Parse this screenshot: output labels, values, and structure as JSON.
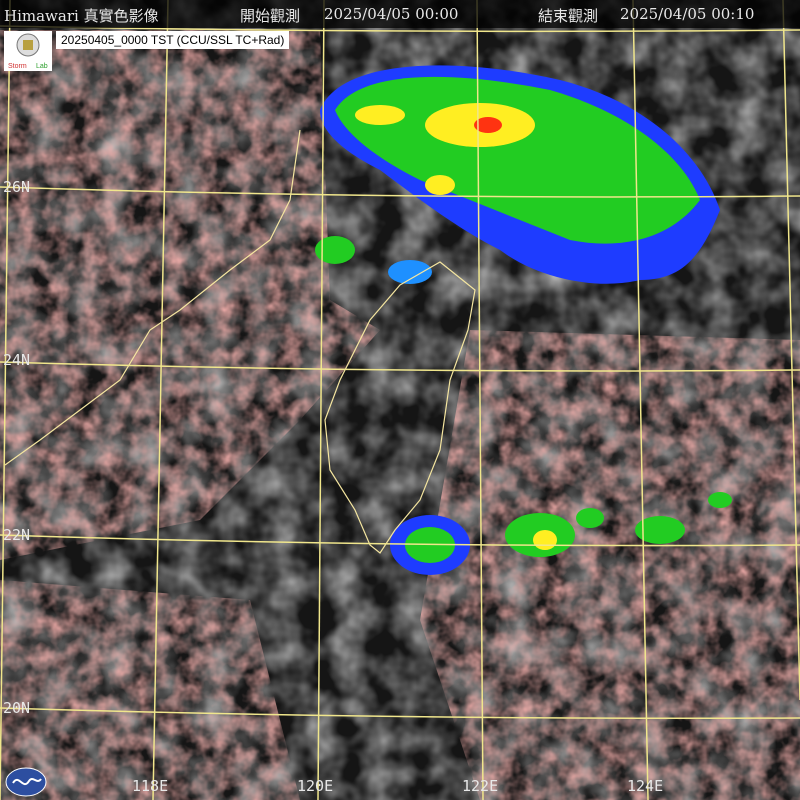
{
  "header": {
    "title": "Himawari 真實色影像",
    "start_label": "開始觀測",
    "start_time": "2025/04/05 00:00",
    "end_label": "結束觀測",
    "end_time": "2025/04/05 00:10"
  },
  "product_label": "20250405_0000 TST (CCU/SSL TC+Rad)",
  "logo_text": "Satellite Storm Lab",
  "latitude_labels": [
    "26N",
    "24N",
    "22N",
    "20N"
  ],
  "longitude_labels": [
    "118E",
    "120E",
    "122E",
    "124E"
  ],
  "colors": {
    "grid": "#f0e68c",
    "coast": "#f5e6a0",
    "low_cloud": "#e0706a",
    "radar_green": "#22cc22",
    "radar_blue": "#1e3cff",
    "radar_yellow": "#ffee22",
    "radar_red": "#ff3311"
  }
}
